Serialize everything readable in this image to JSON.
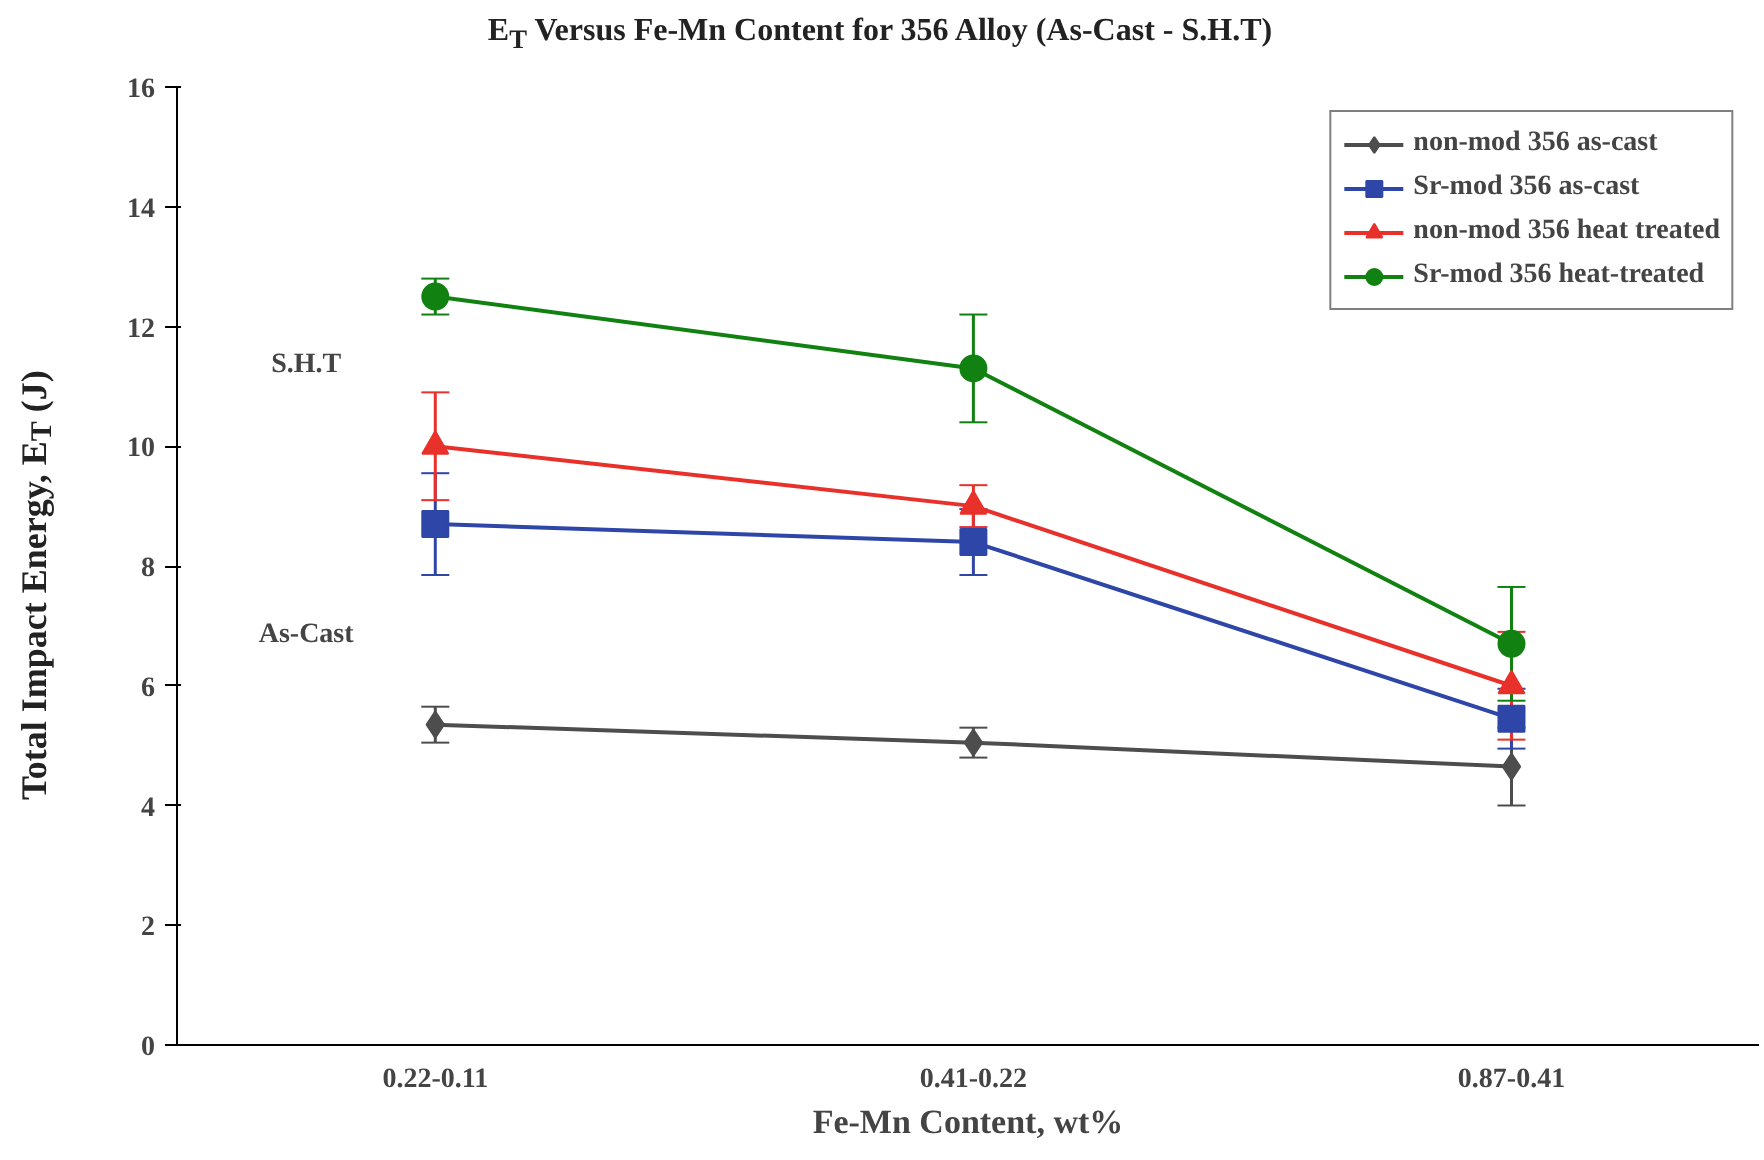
{
  "chart_data": {
    "type": "line",
    "title": "E$_{T}$ Versus Fe-Mn Content for 356 Alloy (As-Cast - S.H.T)",
    "xlabel": "Fe-Mn Content, wt%",
    "ylabel": "Total Impact Energy, E$_{T}$ (J)",
    "categories": [
      "0.22-0.11",
      "0.41-0.22",
      "0.87-0.41"
    ],
    "ylim": [
      0,
      16
    ],
    "yticks": [
      0,
      2,
      4,
      6,
      8,
      10,
      12,
      14,
      16
    ],
    "grid": false,
    "legend": "top right",
    "line_style": "solid",
    "annotations": [
      "S.H.T",
      "As-Cast"
    ],
    "series": [
      {
        "name": "non-mod 356 as-cast",
        "color": "#4d4d4d",
        "marker": "diamond",
        "values": [
          5.35,
          5.05,
          4.65
        ],
        "errors": [
          0.3,
          0.25,
          0.65
        ]
      },
      {
        "name": "Sr-mod 356 as-cast",
        "color": "#2e46a8",
        "marker": "square",
        "values": [
          8.7,
          8.4,
          5.45
        ],
        "errors": [
          0.85,
          0.55,
          0.5
        ]
      },
      {
        "name": "non-mod 356 heat treated",
        "color": "#e8312a",
        "marker": "triangle",
        "values": [
          10.0,
          9.0,
          6.0
        ],
        "errors": [
          0.9,
          0.35,
          0.9
        ]
      },
      {
        "name": "Sr-mod 356 heat-treated",
        "color": "#118211",
        "marker": "circle",
        "values": [
          12.5,
          11.3,
          6.7
        ],
        "errors": [
          0.3,
          0.9,
          0.95
        ]
      }
    ]
  }
}
